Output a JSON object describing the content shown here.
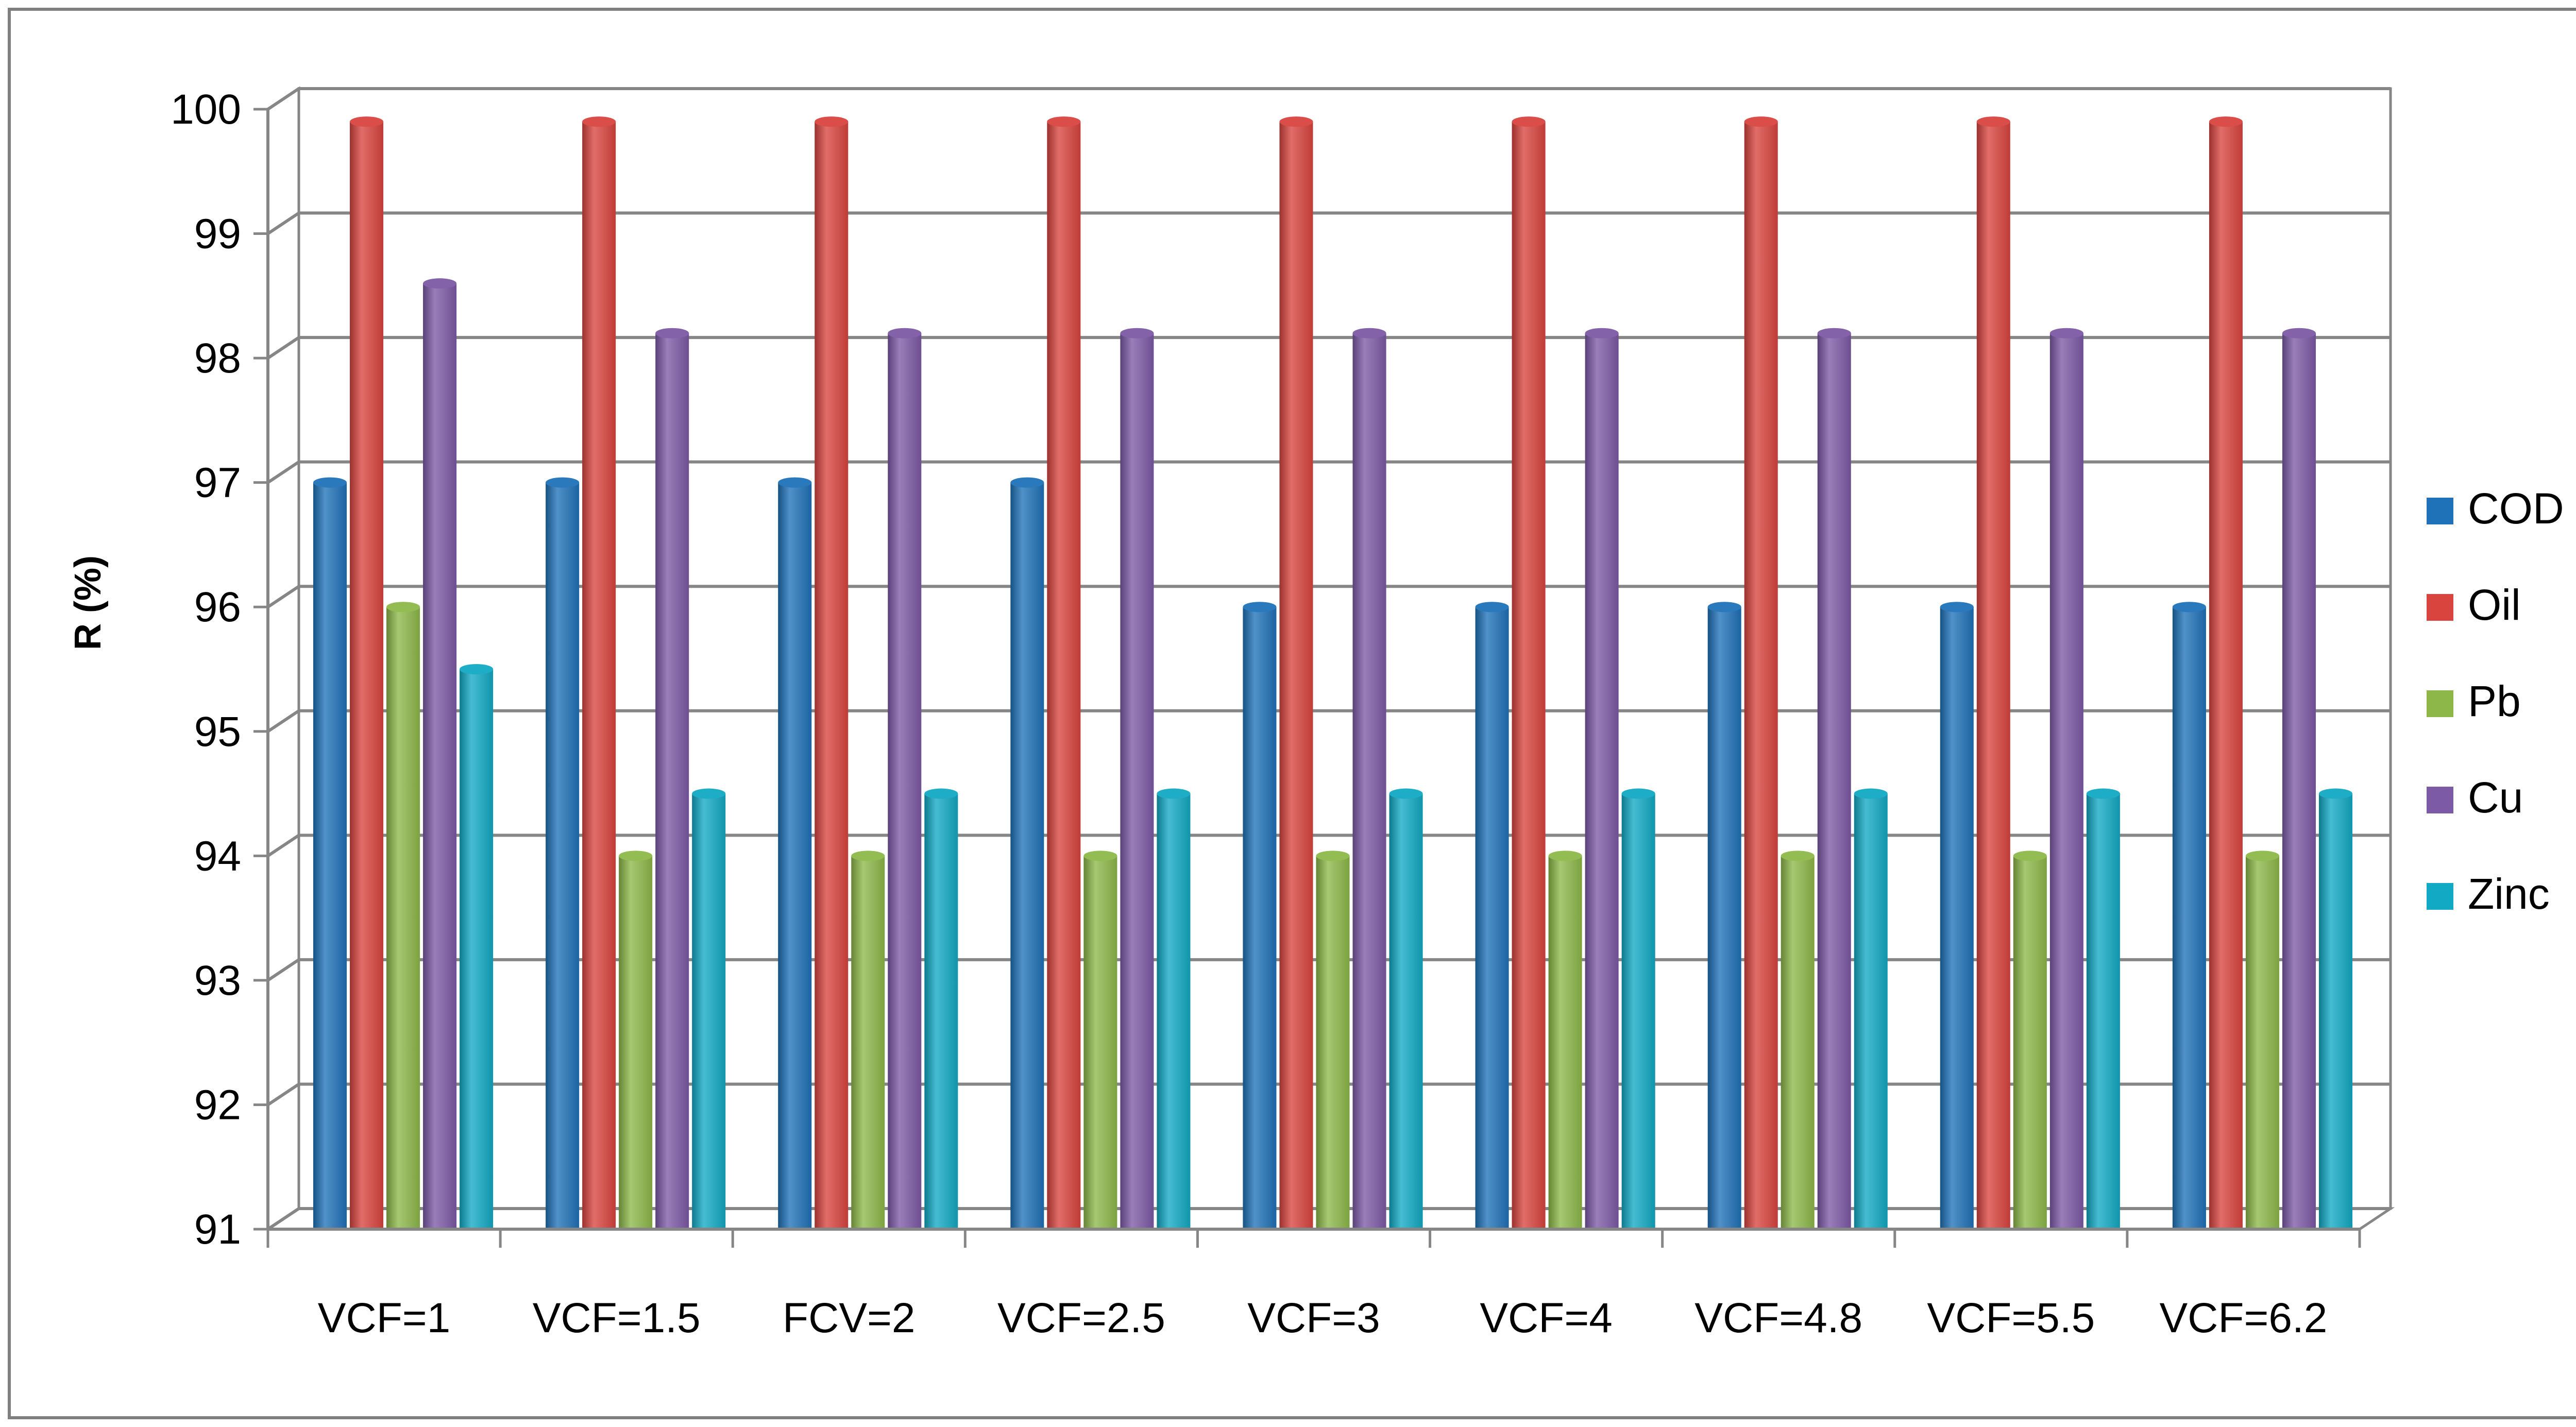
{
  "chart_data": {
    "type": "bar",
    "title": "",
    "xlabel": "",
    "ylabel": "R (%)",
    "ylim": [
      91,
      100
    ],
    "yticks": [
      91,
      92,
      93,
      94,
      95,
      96,
      97,
      98,
      99,
      100
    ],
    "grid": true,
    "legend_position": "right",
    "categories": [
      "VCF=1",
      "VCF=1.5",
      "FCV=2",
      "VCF=2.5",
      "VCF=3",
      "VCF=4",
      "VCF=4.8",
      "VCF=5.5",
      "VCF=6.2"
    ],
    "series": [
      {
        "name": "COD",
        "color": "#1F72B8",
        "values": [
          97,
          97,
          97,
          97,
          96,
          96,
          96,
          96,
          96
        ]
      },
      {
        "name": "Oil",
        "color": "#D9443F",
        "values": [
          99.9,
          99.9,
          99.9,
          99.9,
          99.9,
          99.9,
          99.9,
          99.9,
          99.9
        ]
      },
      {
        "name": "Pb",
        "color": "#8DB849",
        "values": [
          96,
          94,
          94,
          94,
          94,
          94,
          94,
          94,
          94
        ]
      },
      {
        "name": "Cu",
        "color": "#7C5AA6",
        "values": [
          98.6,
          98.2,
          98.2,
          98.2,
          98.2,
          98.2,
          98.2,
          98.2,
          98.2
        ]
      },
      {
        "name": "Zinc",
        "color": "#12A9C4",
        "values": [
          95.5,
          94.5,
          94.5,
          94.5,
          94.5,
          94.5,
          94.5,
          94.5,
          94.5
        ]
      }
    ]
  }
}
